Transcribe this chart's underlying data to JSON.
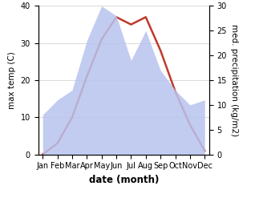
{
  "months": [
    "Jan",
    "Feb",
    "Mar",
    "Apr",
    "May",
    "Jun",
    "Jul",
    "Aug",
    "Sep",
    "Oct",
    "Nov",
    "Dec"
  ],
  "temp": [
    0,
    3,
    10,
    21,
    31,
    37,
    35,
    37,
    28,
    17,
    8,
    1
  ],
  "precip": [
    8,
    11,
    13,
    23,
    30,
    28,
    19,
    25,
    17,
    13,
    10,
    11
  ],
  "temp_color": "#c0392b",
  "precip_color_fill": "#b8c4ee",
  "title": "",
  "xlabel": "date (month)",
  "ylabel_left": "max temp (C)",
  "ylabel_right": "med. precipitation (kg/m2)",
  "ylim_left": [
    0,
    40
  ],
  "ylim_right": [
    0,
    30
  ],
  "yticks_left": [
    0,
    10,
    20,
    30,
    40
  ],
  "yticks_right": [
    0,
    5,
    10,
    15,
    20,
    25,
    30
  ],
  "background_color": "#ffffff",
  "temp_lw": 1.8,
  "font_size_ticks": 7,
  "font_size_ylabel": 7.5,
  "font_size_xlabel": 8.5
}
